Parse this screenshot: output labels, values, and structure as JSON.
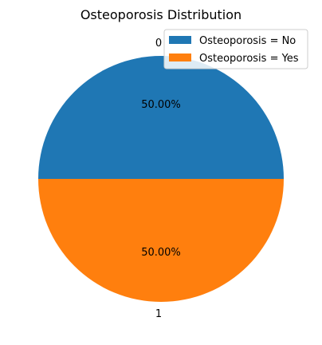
{
  "chart_data": {
    "type": "pie",
    "title": "Osteoporosis Distribution",
    "categories": [
      "0",
      "1"
    ],
    "values": [
      50,
      50
    ],
    "percent_labels": [
      "50.00%",
      "50.00%"
    ],
    "legend": [
      "Osteoporosis = No",
      "Osteoporosis = Yes"
    ],
    "colors": [
      "#1f77b4",
      "#ff7f0e"
    ],
    "legend_position": "top-right"
  }
}
